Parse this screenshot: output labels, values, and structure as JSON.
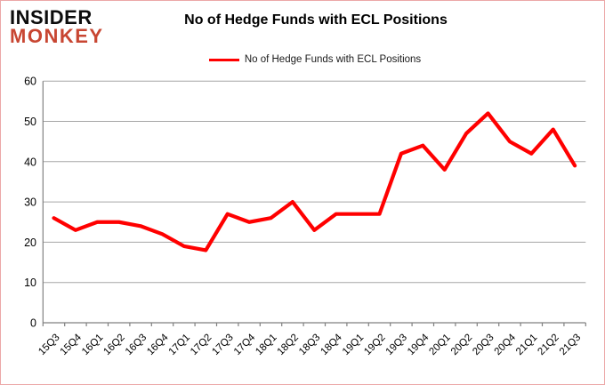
{
  "logo": {
    "line1": "INSIDER",
    "line2": "MONKEY"
  },
  "header": {
    "title": "No of Hedge Funds with ECL Positions"
  },
  "legend": {
    "label": "No of Hedge Funds with ECL Positions",
    "line_color": "#FF0000"
  },
  "chart_data": {
    "type": "line",
    "title": "No of Hedge Funds with ECL Positions",
    "categories": [
      "15Q3",
      "15Q4",
      "16Q1",
      "16Q2",
      "16Q3",
      "16Q4",
      "17Q1",
      "17Q2",
      "17Q3",
      "17Q4",
      "18Q1",
      "18Q2",
      "18Q3",
      "18Q4",
      "19Q1",
      "19Q2",
      "19Q3",
      "19Q4",
      "20Q1",
      "20Q2",
      "20Q3",
      "20Q4",
      "21Q1",
      "21Q2",
      "21Q3"
    ],
    "series": [
      {
        "name": "No of Hedge Funds with ECL Positions",
        "color": "#FF0000",
        "values": [
          26,
          23,
          25,
          25,
          24,
          22,
          19,
          18,
          27,
          25,
          26,
          30,
          23,
          27,
          27,
          27,
          42,
          44,
          38,
          47,
          52,
          45,
          42,
          48,
          39
        ]
      }
    ],
    "ylim": [
      0,
      60
    ],
    "yticks": [
      0,
      10,
      20,
      30,
      40,
      50,
      60
    ],
    "grid": true,
    "legend_position": "top",
    "axis_colors": {
      "gridline": "#a6a6a6",
      "axis": "#808080",
      "tick_text": "#000000"
    }
  }
}
